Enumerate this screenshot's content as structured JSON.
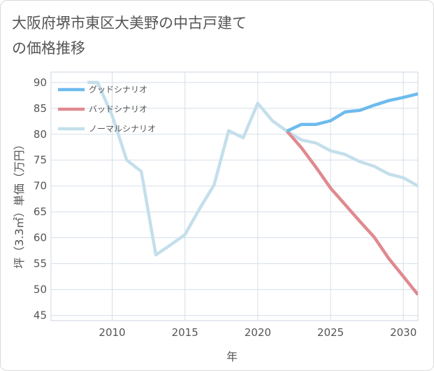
{
  "chart_data": {
    "type": "line",
    "title": "大阪府堺市東区大美野の中古戸建ての価格推移",
    "xlabel": "年",
    "ylabel": "坪（3.3㎡）単価（万円）",
    "xlim": [
      2005.8,
      2031.0
    ],
    "ylim": [
      44.0,
      92.0
    ],
    "xticks": [
      2010,
      2015,
      2020,
      2025,
      2030
    ],
    "yticks": [
      45,
      50,
      55,
      60,
      65,
      70,
      75,
      80,
      85,
      90
    ],
    "legend_position": "top-left",
    "series": [
      {
        "name": "グッドシナリオ",
        "color": "#6dbbee",
        "x": [
          2022,
          2023,
          2024,
          2025,
          2026,
          2027,
          2028,
          2029,
          2030,
          2031
        ],
        "y": [
          80.6,
          81.9,
          81.9,
          82.6,
          84.3,
          84.6,
          85.6,
          86.5,
          87.1,
          87.8
        ]
      },
      {
        "name": "バッドシナリオ",
        "color": "#e0898f",
        "x": [
          2022,
          2023,
          2024,
          2025,
          2026,
          2027,
          2028,
          2029,
          2030,
          2031
        ],
        "y": [
          80.6,
          77.4,
          73.6,
          69.6,
          66.4,
          63.2,
          60.1,
          56.0,
          52.5,
          49.0
        ]
      },
      {
        "name": "ノーマルシナリオ",
        "color": "#c4dfeb",
        "x": [
          2008.3,
          2009,
          2010,
          2011,
          2012,
          2013,
          2014,
          2015,
          2016,
          2017,
          2018,
          2019,
          2020,
          2021,
          2022,
          2023,
          2024,
          2025,
          2026,
          2027,
          2028,
          2029,
          2030,
          2031
        ],
        "y": [
          90.0,
          90.0,
          83.6,
          75.0,
          72.8,
          56.7,
          58.6,
          60.6,
          65.6,
          70.2,
          80.7,
          79.3,
          86.0,
          82.6,
          80.6,
          78.9,
          78.3,
          76.8,
          76.1,
          74.7,
          73.8,
          72.3,
          71.6,
          70.0
        ]
      }
    ]
  }
}
